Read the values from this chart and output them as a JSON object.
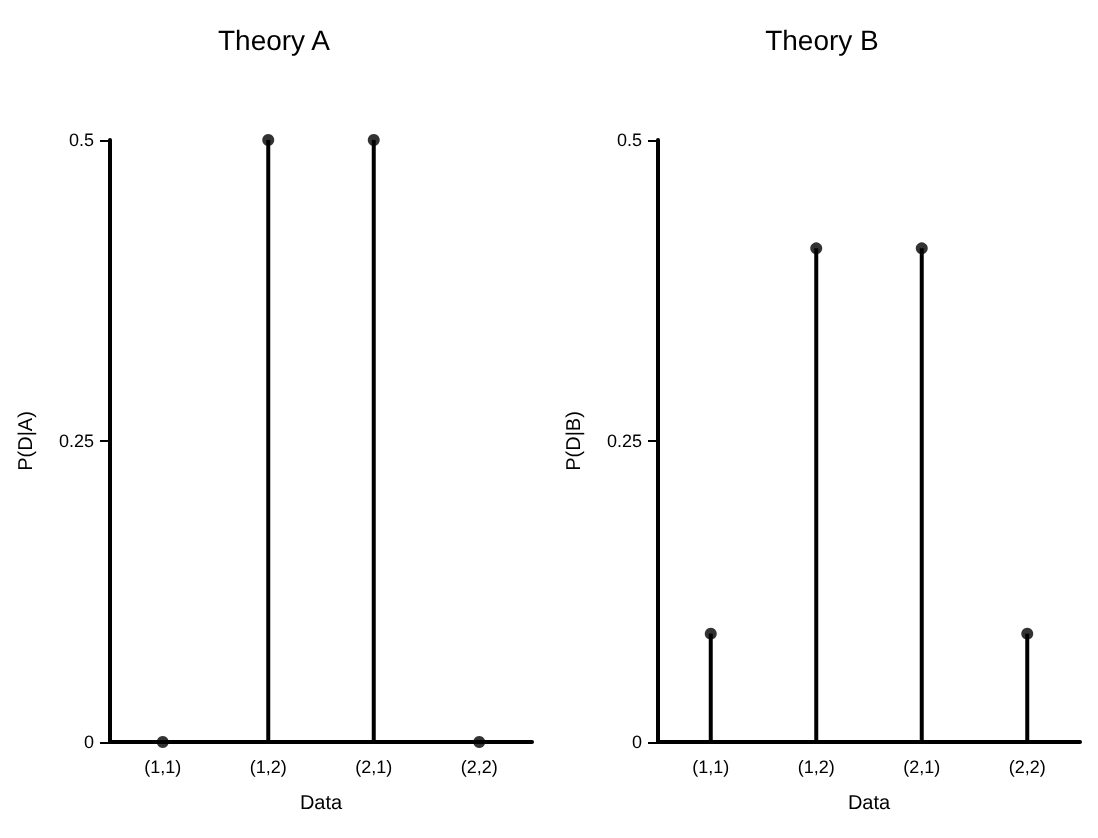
{
  "chart_data": [
    {
      "type": "lollipop",
      "title": "Theory A",
      "xlabel": "Data",
      "ylabel": "P(D|A)",
      "categories": [
        "(1,1)",
        "(1,2)",
        "(2,1)",
        "(2,2)"
      ],
      "series": [
        {
          "color": "#000000",
          "values": [
            0,
            0.5,
            0.5,
            0
          ]
        }
      ],
      "ylim": [
        0,
        0.5
      ],
      "yticks": [
        0,
        0.25,
        0.5
      ],
      "marker": "circle"
    },
    {
      "type": "lollipop",
      "title": "Theory B",
      "xlabel": "Data",
      "ylabel": "P(D|B)",
      "categories": [
        "(1,1)",
        "(1,2)",
        "(2,1)",
        "(2,2)"
      ],
      "series": [
        {
          "color": "#000000",
          "values": [
            0.09,
            0.41,
            0.41,
            0.09
          ]
        }
      ],
      "ylim": [
        0,
        0.5
      ],
      "yticks": [
        0,
        0.25,
        0.5
      ],
      "marker": "circle"
    }
  ]
}
